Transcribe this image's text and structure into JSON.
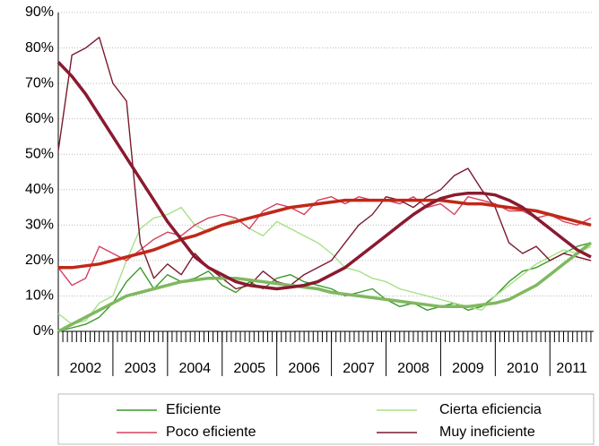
{
  "chart_data": {
    "type": "line",
    "x": [
      2002,
      2002.25,
      2002.5,
      2002.75,
      2003,
      2003.25,
      2003.5,
      2003.75,
      2004,
      2004.25,
      2004.5,
      2004.75,
      2005,
      2005.25,
      2005.5,
      2005.75,
      2006,
      2006.25,
      2006.5,
      2006.75,
      2007,
      2007.25,
      2007.5,
      2007.75,
      2008,
      2008.25,
      2008.5,
      2008.75,
      2009,
      2009.25,
      2009.5,
      2009.75,
      2010,
      2010.25,
      2010.5,
      2010.75,
      2011,
      2011.25,
      2011.5,
      2011.75
    ],
    "series": [
      {
        "name": "Eficiente",
        "color": "#3a9a2a",
        "values": [
          0,
          1,
          2,
          4,
          8,
          14,
          18,
          12,
          16,
          14,
          15,
          17,
          13,
          11,
          14,
          12,
          15,
          16,
          14,
          13,
          12,
          10,
          11,
          12,
          9,
          7,
          8,
          6,
          7,
          8,
          6,
          7,
          10,
          14,
          17,
          18,
          20,
          22,
          24,
          25
        ]
      },
      {
        "name": "Cierta eficiencia",
        "color": "#a8e088",
        "values": [
          5,
          2,
          3,
          8,
          10,
          20,
          29,
          32,
          33,
          35,
          30,
          28,
          30,
          32,
          29,
          27,
          31,
          29,
          27,
          25,
          22,
          18,
          17,
          15,
          14,
          12,
          11,
          10,
          9,
          8,
          7,
          6,
          10,
          13,
          16,
          19,
          21,
          23,
          22,
          24
        ]
      },
      {
        "name": "Poco eficiente",
        "color": "#d8405e",
        "values": [
          18,
          13,
          15,
          24,
          22,
          20,
          23,
          26,
          28,
          27,
          30,
          32,
          33,
          32,
          29,
          34,
          36,
          35,
          33,
          37,
          38,
          36,
          38,
          37,
          37,
          36,
          38,
          35,
          36,
          33,
          38,
          37,
          36,
          34,
          34,
          32,
          33,
          31,
          30,
          32
        ]
      },
      {
        "name": "Muy ineficiente",
        "color": "#7a1a2e",
        "values": [
          51,
          78,
          80,
          83,
          70,
          65,
          25,
          15,
          19,
          16,
          22,
          18,
          15,
          12,
          13,
          17,
          14,
          13,
          16,
          18,
          20,
          25,
          30,
          33,
          38,
          37,
          35,
          38,
          40,
          44,
          46,
          40,
          35,
          25,
          22,
          24,
          20,
          22,
          21,
          20
        ]
      }
    ],
    "trends": [
      {
        "color": "#80b860",
        "values": [
          0,
          2,
          4,
          6,
          8,
          10,
          11,
          12,
          13,
          14,
          14.5,
          15,
          15,
          15,
          14.5,
          14,
          13.5,
          13,
          12.5,
          12,
          11,
          10.5,
          10,
          9.5,
          9,
          8.5,
          8,
          7.5,
          7,
          7,
          7,
          7.5,
          8,
          9,
          11,
          13,
          16,
          19,
          22,
          25
        ]
      },
      {
        "color": "#c02818",
        "values": [
          18,
          18,
          18.5,
          19,
          20,
          21,
          22,
          23,
          24.5,
          26,
          27,
          28.5,
          30,
          31,
          32,
          33,
          34,
          35,
          35.5,
          36,
          36.5,
          37,
          37,
          37,
          37,
          37,
          37,
          37,
          37,
          36.5,
          36,
          36,
          35.5,
          35,
          34.5,
          34,
          33,
          32,
          31,
          30
        ]
      },
      {
        "color": "#8a1a30",
        "values": [
          76,
          72,
          67,
          61,
          55,
          49,
          43,
          37,
          31,
          26,
          21,
          18,
          16,
          14,
          13,
          12.5,
          12,
          12.5,
          13,
          14,
          16,
          18,
          21,
          24,
          27,
          30,
          33,
          35.5,
          37.5,
          38.5,
          39,
          39,
          38.5,
          37,
          35,
          32,
          29,
          26,
          23,
          21
        ]
      }
    ],
    "xlim": [
      2002,
      2011.8
    ],
    "xticks": [
      2002,
      2003,
      2004,
      2005,
      2006,
      2007,
      2008,
      2009,
      2010,
      2011
    ],
    "ylim": [
      0,
      90
    ],
    "yticks": [
      {
        "value": 0,
        "label": "0%"
      },
      {
        "value": 10,
        "label": "10%"
      },
      {
        "value": 20,
        "label": "20%"
      },
      {
        "value": 30,
        "label": "30%"
      },
      {
        "value": 40,
        "label": "40%"
      },
      {
        "value": 50,
        "label": "50%"
      },
      {
        "value": 60,
        "label": "60%"
      },
      {
        "value": 70,
        "label": "70%"
      },
      {
        "value": 80,
        "label": "80%"
      },
      {
        "value": 90,
        "label": "90%"
      }
    ],
    "grid": true
  }
}
